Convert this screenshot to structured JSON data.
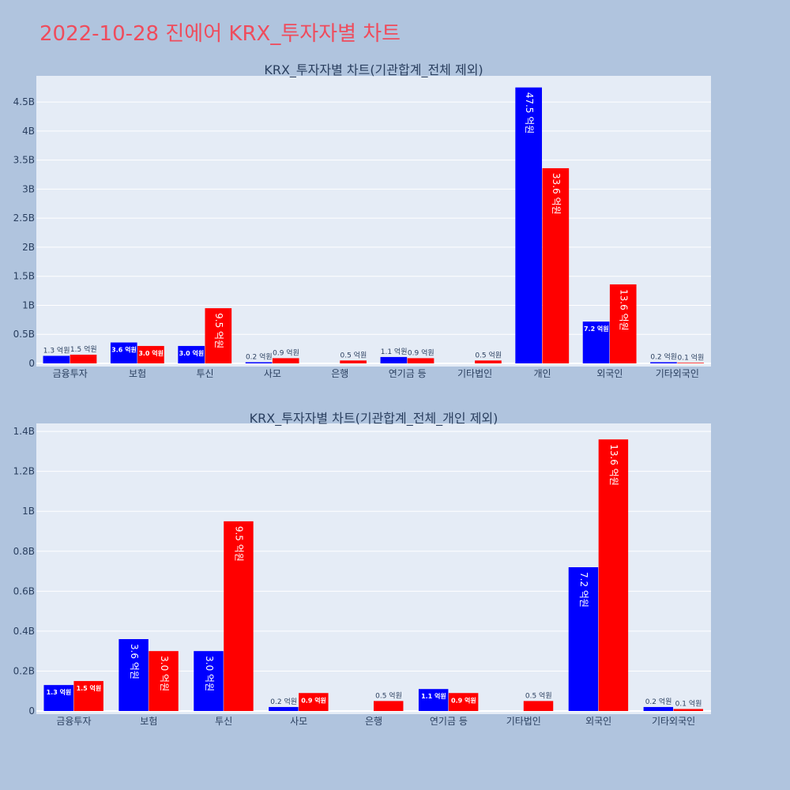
{
  "page": {
    "title": "2022-10-28 진에어 KRX_투자자별 차트"
  },
  "colors": {
    "background": "#b0c4de",
    "plot_background": "#e5ecf6",
    "grid": "#ffffff",
    "title": "#ef4c5c",
    "text": "#2a3f5f",
    "series_a": "#0000ff",
    "series_b": "#ff0000"
  },
  "chart_data": [
    {
      "type": "bar",
      "title": "KRX_투자자별 차트(기관합계_전체 제외)",
      "categories": [
        "금융투자",
        "보험",
        "투신",
        "사모",
        "은행",
        "연기금 등",
        "기타법인",
        "개인",
        "외국인",
        "기타외국인"
      ],
      "series": [
        {
          "color": "#0000ff",
          "values": [
            0.13,
            0.36,
            0.3,
            0.02,
            0,
            0.11,
            0,
            4.75,
            0.72,
            0.02
          ],
          "labels": [
            "1.3 억원",
            "3.6 억원",
            "3.0 억원",
            "0.2 억원",
            "",
            "1.1 억원",
            "",
            "47.5 억원",
            "7.2 억원",
            "0.2 억원"
          ]
        },
        {
          "color": "#ff0000",
          "values": [
            0.15,
            0.3,
            0.95,
            0.09,
            0.05,
            0.09,
            0.05,
            3.36,
            1.36,
            0.01
          ],
          "labels": [
            "1.5 억원",
            "3.0 억원",
            "9.5 억원",
            "0.9 억원",
            "0.5 억원",
            "0.9 억원",
            "0.5 억원",
            "33.6 억원",
            "13.6 억원",
            "0.1 억원"
          ]
        }
      ],
      "yunit": "B",
      "ylim": [
        0,
        4.95
      ],
      "yticks": [
        0,
        0.5,
        1,
        1.5,
        2,
        2.5,
        3,
        3.5,
        4,
        4.5
      ],
      "ytick_labels": [
        "0",
        "0.5B",
        "1B",
        "1.5B",
        "2B",
        "2.5B",
        "3B",
        "3.5B",
        "4B",
        "4.5B"
      ],
      "grid": true
    },
    {
      "type": "bar",
      "title": "KRX_투자자별 차트(기관합계_전체_개인 제외)",
      "categories": [
        "금융투자",
        "보험",
        "투신",
        "사모",
        "은행",
        "연기금 등",
        "기타법인",
        "외국인",
        "기타외국인"
      ],
      "series": [
        {
          "color": "#0000ff",
          "values": [
            0.13,
            0.36,
            0.3,
            0.02,
            0,
            0.11,
            0,
            0.72,
            0.02
          ],
          "labels": [
            "1.3 억원",
            "3.6 억원",
            "3.0 억원",
            "0.2 억원",
            "",
            "1.1 억원",
            "",
            "7.2 억원",
            "0.2 억원"
          ]
        },
        {
          "color": "#ff0000",
          "values": [
            0.15,
            0.3,
            0.95,
            0.09,
            0.05,
            0.09,
            0.05,
            1.36,
            0.01
          ],
          "labels": [
            "1.5 억원",
            "3.0 억원",
            "9.5 억원",
            "0.9 억원",
            "0.5 억원",
            "0.9 억원",
            "0.5 억원",
            "13.6 억원",
            "0.1 억원"
          ]
        }
      ],
      "yunit": "B",
      "ylim": [
        0,
        1.44
      ],
      "yticks": [
        0,
        0.2,
        0.4,
        0.6,
        0.8,
        1.0,
        1.2,
        1.4
      ],
      "ytick_labels": [
        "0",
        "0.2B",
        "0.4B",
        "0.6B",
        "0.8B",
        "1B",
        "1.2B",
        "1.4B"
      ],
      "grid": true
    }
  ]
}
